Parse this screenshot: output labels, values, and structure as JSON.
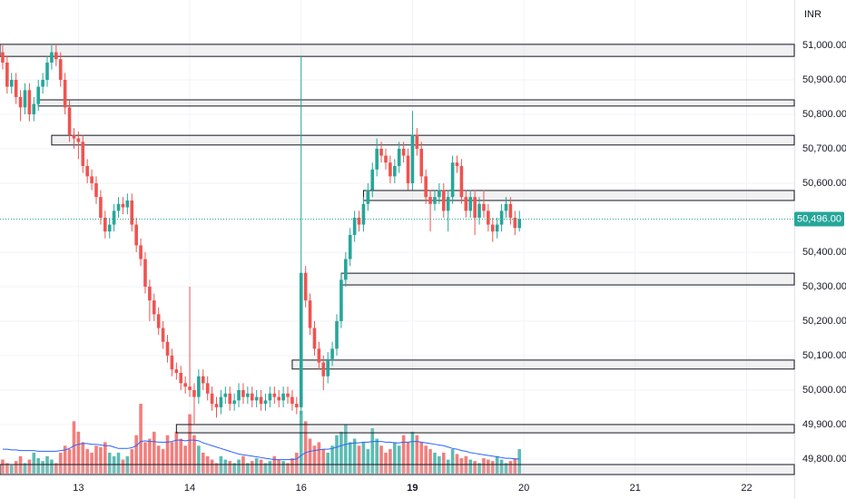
{
  "chart_data": {
    "type": "candlestick",
    "currency": "INR",
    "xlim": [
      -0.6,
      177.7
    ],
    "xticks": [
      {
        "value": 17,
        "label": "13"
      },
      {
        "value": 42,
        "label": "14"
      },
      {
        "value": 67,
        "label": "16"
      },
      {
        "value": 92,
        "label": "19"
      },
      {
        "value": 117,
        "label": "20"
      },
      {
        "value": 142,
        "label": "21"
      },
      {
        "value": 167,
        "label": "22"
      }
    ],
    "ylim": [
      49684,
      51131.6
    ],
    "yticks": [
      {
        "value": 51000,
        "label": "51,000.00"
      },
      {
        "value": 50900,
        "label": "50,900.00"
      },
      {
        "value": 50800,
        "label": "50,800.00"
      },
      {
        "value": 50700,
        "label": "50,700.00"
      },
      {
        "value": 50600,
        "label": "50,600.00"
      },
      {
        "value": 50400,
        "label": "50,400.00"
      },
      {
        "value": 50300,
        "label": "50,300.00"
      },
      {
        "value": 50200,
        "label": "50,200.00"
      },
      {
        "value": 50100,
        "label": "50,100.00"
      },
      {
        "value": 50000,
        "label": "50,000.00"
      },
      {
        "value": 49900,
        "label": "49,900.00"
      },
      {
        "value": 49800,
        "label": "49,800.00"
      }
    ],
    "grid": true,
    "up_color": "#26a69a",
    "down_color": "#ef5350",
    "ma_color": "#2962ff",
    "last_price": {
      "value": 50496,
      "label": "50,496.00"
    },
    "open": [
      50980,
      50950,
      50880,
      50900,
      50850,
      50820,
      50870,
      50800,
      50830,
      50880,
      50900,
      50950,
      50980,
      50960,
      50900,
      50820,
      50740,
      50730,
      50720,
      50650,
      50620,
      50600,
      50560,
      50500,
      50460,
      50480,
      50520,
      50540,
      50530,
      50550,
      50480,
      50420,
      50380,
      50300,
      50260,
      50220,
      50180,
      50140,
      50100,
      50060,
      50050,
      50020,
      50010,
      50000,
      49980,
      50040,
      50020,
      49990,
      49960,
      49950,
      49980,
      49990,
      49960,
      49970,
      50000,
      49980,
      49990,
      49970,
      49980,
      49960,
      49970,
      49990,
      49980,
      49970,
      49990,
      49980,
      49960,
      49950,
      50340,
      50260,
      50180,
      50120,
      50080,
      50040,
      50090,
      50120,
      50200,
      50320,
      50380,
      50450,
      50500,
      50480,
      50540,
      50580,
      50640,
      50700,
      50680,
      50660,
      50620,
      50650,
      50700,
      50680,
      50600,
      50740,
      50700,
      50620,
      50560,
      50540,
      50560,
      50580,
      50520,
      50560,
      50660,
      50650,
      50560,
      50520,
      50560,
      50500,
      50540,
      50520,
      50480,
      50460,
      50480,
      50520,
      50540,
      50500,
      50470
    ],
    "high": [
      51000,
      50970,
      50920,
      50920,
      50870,
      50890,
      50890,
      50850,
      50900,
      50920,
      50970,
      51000,
      51000,
      50980,
      50920,
      50840,
      50760,
      50750,
      50740,
      50670,
      50640,
      50620,
      50580,
      50520,
      50500,
      50540,
      50560,
      50560,
      50570,
      50570,
      50500,
      50440,
      50400,
      50320,
      50280,
      50240,
      50200,
      50160,
      50120,
      50080,
      50070,
      50040,
      50300,
      50020,
      50060,
      50060,
      50040,
      50010,
      49980,
      50000,
      50010,
      50010,
      49990,
      50020,
      50020,
      50010,
      50010,
      50000,
      50000,
      49990,
      50010,
      50010,
      50000,
      50010,
      50010,
      50000,
      49980,
      50970,
      50360,
      50280,
      50200,
      50140,
      50100,
      50110,
      50140,
      50220,
      50340,
      50400,
      50470,
      50520,
      50520,
      50560,
      50600,
      50660,
      50730,
      50720,
      50700,
      50680,
      50670,
      50720,
      50720,
      50700,
      50810,
      50760,
      50720,
      50640,
      50580,
      50580,
      50600,
      50600,
      50580,
      50680,
      50680,
      50670,
      50580,
      50580,
      50580,
      50560,
      50580,
      50540,
      50500,
      50500,
      50540,
      50560,
      50560,
      50520,
      50520
    ],
    "low": [
      50930,
      50860,
      50860,
      50830,
      50780,
      50800,
      50780,
      50780,
      50810,
      50860,
      50880,
      50930,
      50940,
      50880,
      50800,
      50720,
      50700,
      50670,
      50630,
      50600,
      50580,
      50540,
      50480,
      50440,
      50440,
      50460,
      50500,
      50510,
      50510,
      50460,
      50400,
      50360,
      50280,
      50200,
      50200,
      50160,
      50120,
      50080,
      50040,
      50030,
      50000,
      49990,
      49980,
      49900,
      49960,
      50000,
      49970,
      49940,
      49920,
      49930,
      49960,
      49940,
      49940,
      49950,
      49960,
      49960,
      49950,
      49950,
      49940,
      49940,
      49950,
      49960,
      49950,
      49950,
      49960,
      49940,
      49930,
      49930,
      50240,
      50160,
      50100,
      50060,
      50000,
      50020,
      50070,
      50100,
      50180,
      50300,
      50360,
      50430,
      50460,
      50460,
      50520,
      50560,
      50620,
      50660,
      50640,
      50600,
      50600,
      50630,
      50660,
      50580,
      50580,
      50680,
      50600,
      50540,
      50460,
      50520,
      50540,
      50500,
      50460,
      50540,
      50630,
      50540,
      50500,
      50500,
      50450,
      50480,
      50500,
      50460,
      50430,
      50440,
      50460,
      50500,
      50480,
      50450,
      50460
    ],
    "close": [
      50950,
      50880,
      50900,
      50850,
      50820,
      50870,
      50800,
      50830,
      50880,
      50900,
      50950,
      50980,
      50960,
      50900,
      50820,
      50740,
      50730,
      50720,
      50650,
      50620,
      50600,
      50560,
      50500,
      50460,
      50480,
      50520,
      50540,
      50530,
      50550,
      50480,
      50420,
      50380,
      50300,
      50260,
      50220,
      50180,
      50140,
      50100,
      50060,
      50050,
      50020,
      50010,
      50000,
      49980,
      50040,
      50020,
      49990,
      49960,
      49950,
      49980,
      49990,
      49960,
      49970,
      50000,
      49980,
      49990,
      49970,
      49980,
      49960,
      49970,
      49990,
      49980,
      49970,
      49990,
      49980,
      49960,
      49950,
      50340,
      50260,
      50180,
      50120,
      50080,
      50040,
      50090,
      50120,
      50200,
      50320,
      50380,
      50450,
      50500,
      50480,
      50540,
      50580,
      50640,
      50700,
      50680,
      50660,
      50620,
      50650,
      50700,
      50680,
      50600,
      50740,
      50700,
      50620,
      50560,
      50540,
      50560,
      50580,
      50520,
      50560,
      50660,
      50650,
      50560,
      50520,
      50560,
      50500,
      50540,
      50520,
      50480,
      50460,
      50480,
      50520,
      50540,
      50500,
      50470,
      50496
    ],
    "volume_lim": [
      0,
      130
    ],
    "volume": [
      20,
      15,
      12,
      18,
      25,
      15,
      20,
      30,
      22,
      18,
      25,
      20,
      15,
      30,
      40,
      35,
      75,
      60,
      45,
      35,
      30,
      40,
      38,
      45,
      30,
      25,
      30,
      20,
      25,
      35,
      55,
      100,
      45,
      50,
      60,
      40,
      35,
      55,
      45,
      60,
      50,
      40,
      85,
      55,
      40,
      30,
      25,
      20,
      15,
      25,
      20,
      18,
      15,
      20,
      25,
      15,
      18,
      22,
      20,
      15,
      18,
      25,
      20,
      18,
      15,
      22,
      30,
      90,
      75,
      50,
      40,
      45,
      35,
      30,
      40,
      55,
      60,
      70,
      45,
      50,
      40,
      45,
      35,
      65,
      50,
      40,
      30,
      35,
      45,
      40,
      55,
      45,
      60,
      55,
      45,
      40,
      35,
      30,
      25,
      30,
      20,
      35,
      28,
      22,
      25,
      20,
      18,
      15,
      22,
      20,
      18,
      25,
      20,
      15,
      18,
      22,
      35
    ],
    "volume_ma": [
      35,
      35,
      34,
      34,
      33,
      33,
      33,
      33,
      32,
      32,
      32,
      32,
      32,
      33,
      34,
      36,
      40,
      42,
      43,
      43,
      42,
      42,
      41,
      40,
      40,
      38,
      36,
      36,
      36,
      37,
      40,
      46,
      47,
      46,
      46,
      45,
      45,
      45,
      46,
      48,
      48,
      47,
      48,
      48,
      47,
      44,
      42,
      40,
      38,
      36,
      34,
      32,
      30,
      28,
      27,
      26,
      25,
      24,
      23,
      22,
      21,
      20,
      20,
      20,
      20,
      20,
      21,
      26,
      30,
      32,
      33,
      34,
      35,
      35,
      36,
      38,
      40,
      42,
      43,
      44,
      44,
      45,
      45,
      46,
      46,
      46,
      45,
      45,
      44,
      44,
      45,
      45,
      46,
      46,
      45,
      44,
      43,
      42,
      41,
      40,
      38,
      36,
      35,
      33,
      32,
      30,
      29,
      28,
      27,
      26,
      25,
      24,
      23,
      22,
      22,
      21,
      21
    ],
    "zones": [
      [
        50968,
        51003,
        -0.6
      ],
      [
        50824,
        50842,
        8
      ],
      [
        50711,
        50739,
        11
      ],
      [
        50550,
        50579,
        81
      ],
      [
        50305,
        50339,
        76
      ],
      [
        50061,
        50087,
        65
      ],
      [
        49876,
        49900,
        39
      ],
      [
        49755,
        49784,
        -0.6
      ]
    ]
  }
}
